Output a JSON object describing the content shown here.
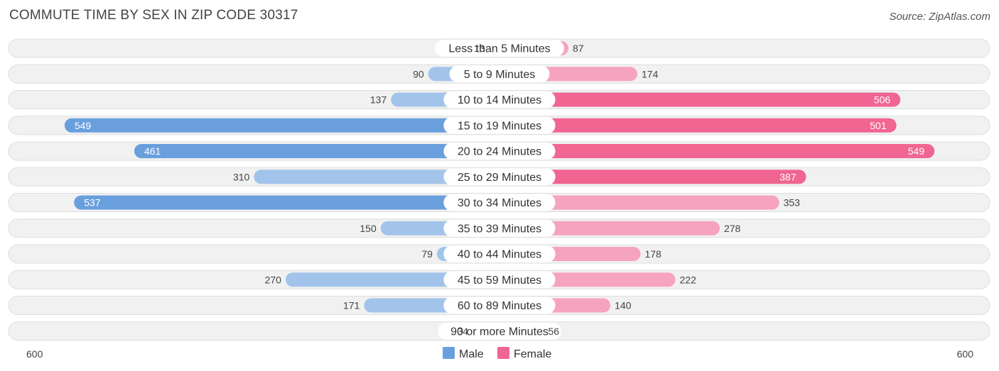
{
  "title": "COMMUTE TIME BY SEX IN ZIP CODE 30317",
  "source": "Source: ZipAtlas.com",
  "colors": {
    "male": "#6a9fdd",
    "male_light": "#a3c4ea",
    "female": "#f06592",
    "female_light": "#f6a3bf",
    "row_bg": "#f1f1f1",
    "row_border": "#dedede"
  },
  "chart_data": {
    "type": "bar",
    "orientation": "horizontal-diverging",
    "categories": [
      "Less than 5 Minutes",
      "5 to 9 Minutes",
      "10 to 14 Minutes",
      "15 to 19 Minutes",
      "20 to 24 Minutes",
      "25 to 29 Minutes",
      "30 to 34 Minutes",
      "35 to 39 Minutes",
      "40 to 44 Minutes",
      "45 to 59 Minutes",
      "60 to 89 Minutes",
      "90 or more Minutes"
    ],
    "series": [
      {
        "name": "Male",
        "values": [
          13,
          90,
          137,
          549,
          461,
          310,
          537,
          150,
          79,
          270,
          171,
          34
        ]
      },
      {
        "name": "Female",
        "values": [
          87,
          174,
          506,
          501,
          549,
          387,
          353,
          278,
          178,
          222,
          140,
          56
        ]
      }
    ],
    "axis_min_label": "600",
    "axis_max_label": "600",
    "xlim": [
      -600,
      600
    ],
    "legend_position": "bottom-center"
  }
}
